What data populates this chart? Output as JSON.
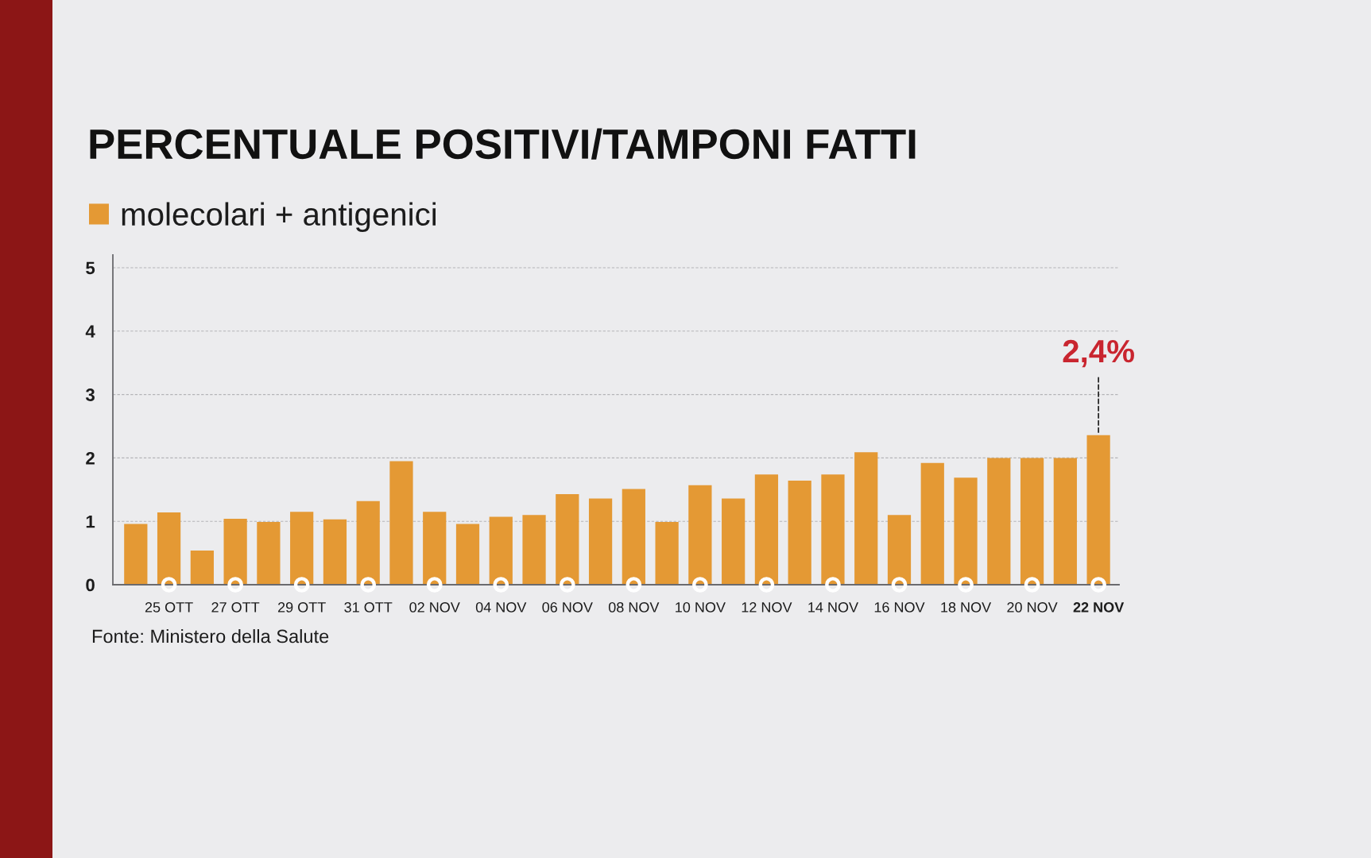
{
  "chart_data": {
    "type": "bar",
    "title": "PERCENTUALE POSITIVI/TAMPONI FATTI",
    "categories": [
      null,
      "25 OTT",
      null,
      "27 OTT",
      null,
      "29 OTT",
      null,
      "31 OTT",
      null,
      "02 NOV",
      null,
      "04 NOV",
      null,
      "06 NOV",
      null,
      "08 NOV",
      null,
      "10 NOV",
      null,
      "12 NOV",
      null,
      "14 NOV",
      null,
      "16 NOV",
      null,
      "18 NOV",
      null,
      "20 NOV",
      null,
      "22 NOV"
    ],
    "series": [
      {
        "name": "molecolari + antigenici",
        "color": "#e49934",
        "values": [
          0.96,
          1.14,
          0.54,
          1.04,
          0.99,
          1.15,
          1.03,
          1.32,
          1.95,
          1.15,
          0.96,
          1.07,
          1.1,
          1.43,
          1.36,
          1.51,
          0.99,
          1.57,
          1.36,
          1.74,
          1.64,
          1.74,
          2.09,
          1.1,
          1.92,
          1.69,
          2.0,
          2.0,
          2.0,
          2.36
        ],
        "value_labels": [
          null,
          null,
          null,
          null,
          null,
          null,
          null,
          null,
          null,
          null,
          null,
          null,
          null,
          null,
          null,
          null,
          null,
          null,
          null,
          null,
          null,
          null,
          null,
          null,
          null,
          null,
          null,
          null,
          null,
          "2,4%"
        ]
      }
    ],
    "ylim": [
      0,
      5.2
    ],
    "yticks": [
      0,
      1,
      2,
      3,
      4,
      5
    ],
    "grid": "y",
    "legend": "top left",
    "annotations": [
      "Fonte: Ministero della Salute"
    ]
  }
}
